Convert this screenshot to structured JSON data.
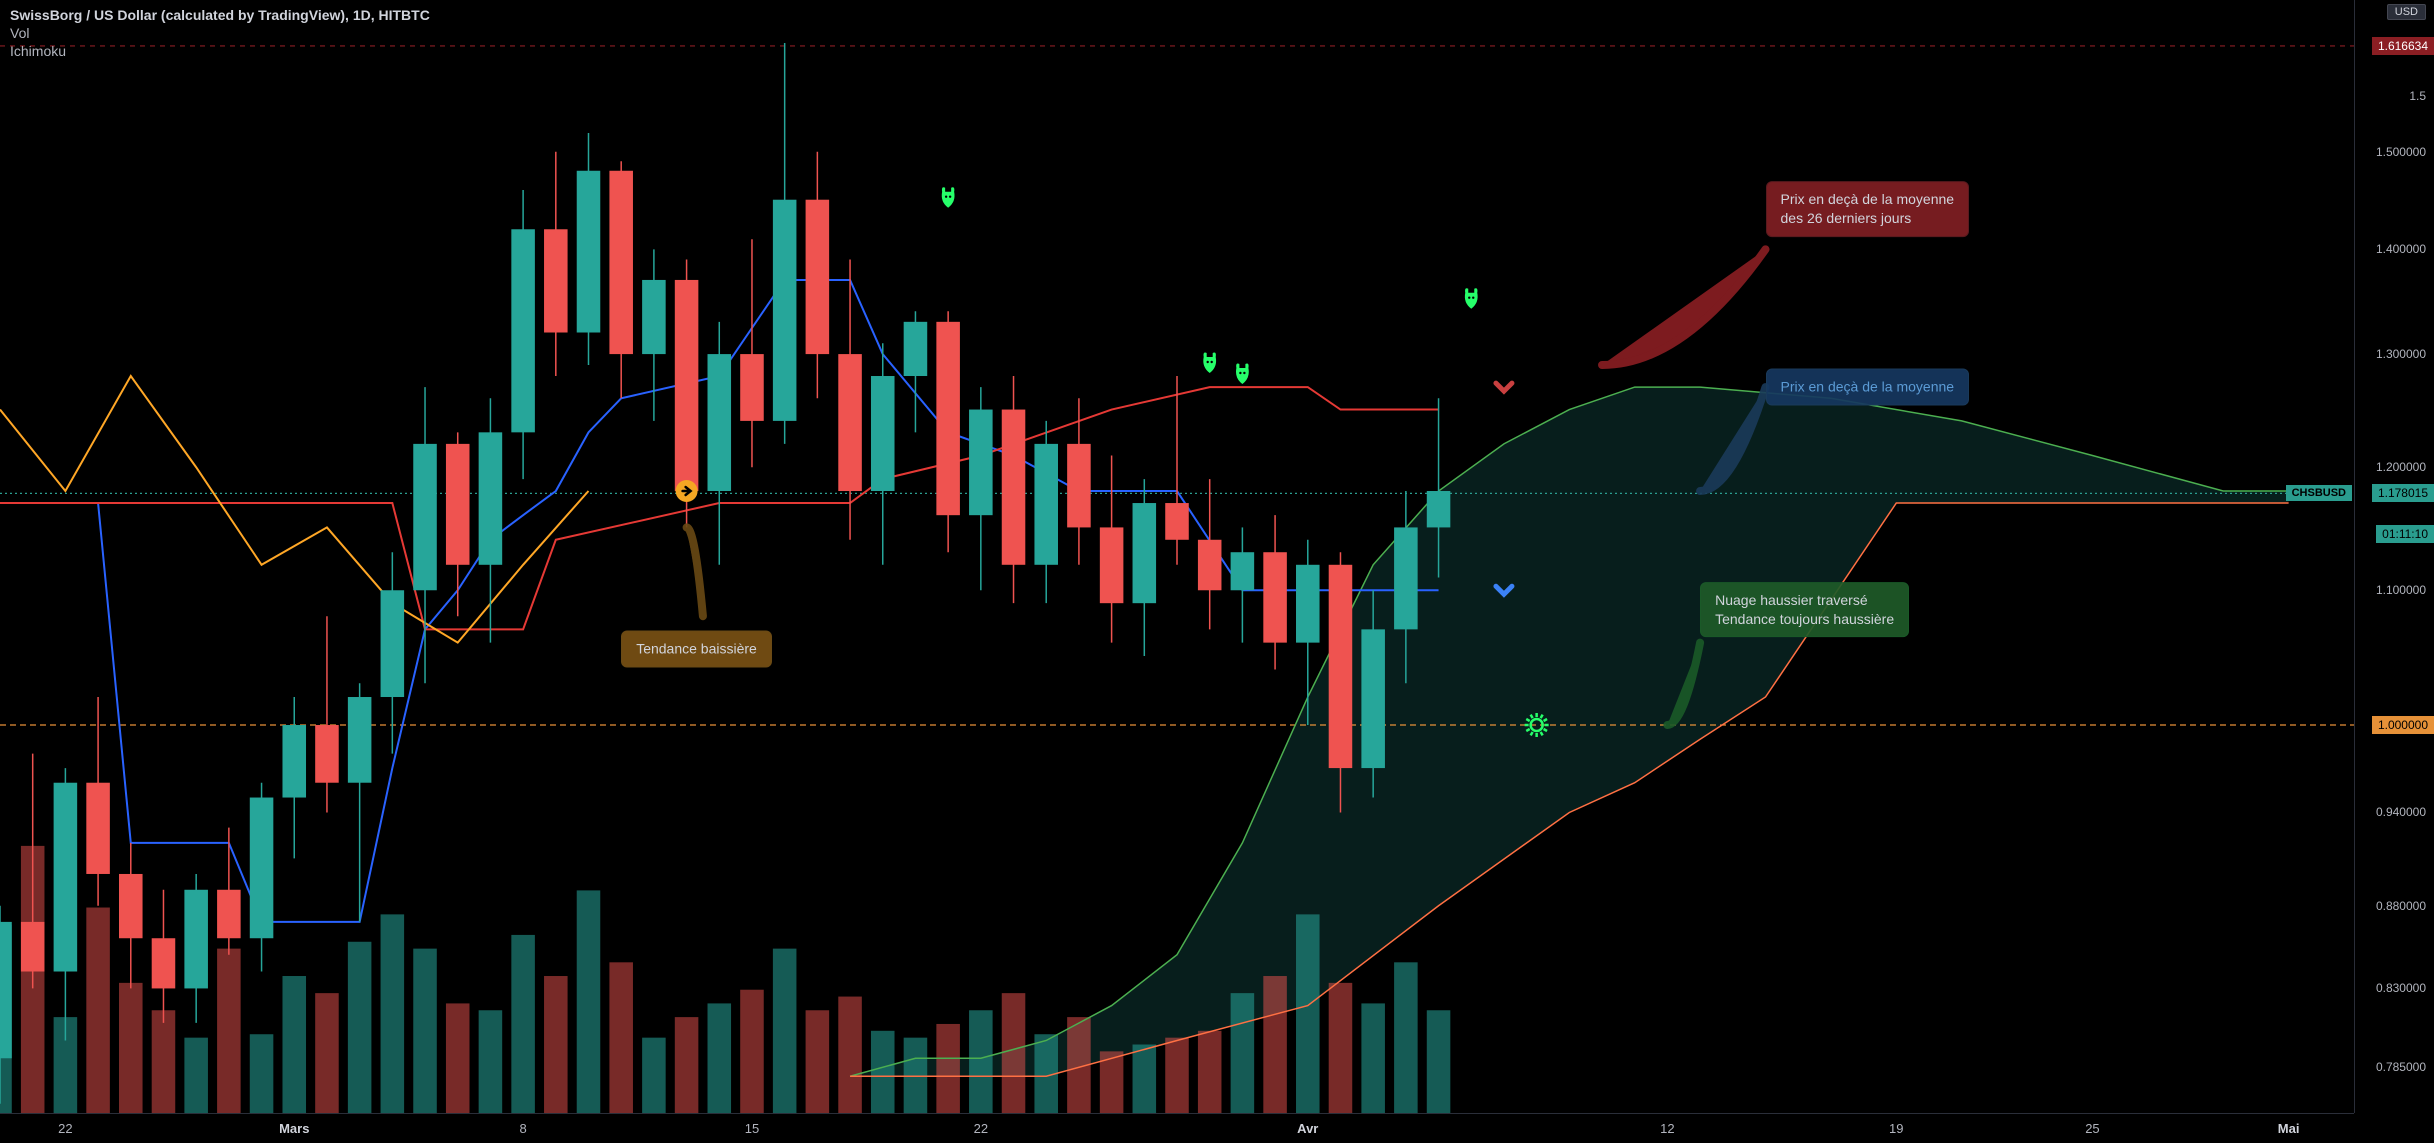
{
  "header": {
    "title": "SwissBorg / US Dollar (calculated by TradingView), 1D, HITBTC",
    "vol": "Vol",
    "ichimoku": "Ichimoku"
  },
  "currency_badge": "USD",
  "symbol_badge": "CHSBUSD",
  "price_axis": {
    "labels": [
      {
        "v": 1.5,
        "text": "1.500000"
      },
      {
        "v": 1.4,
        "text": "1.400000"
      },
      {
        "v": 1.3,
        "text": "1.300000"
      },
      {
        "v": 1.2,
        "text": "1.200000"
      },
      {
        "v": 1.1,
        "text": "1.100000"
      },
      {
        "v": 0.94,
        "text": "0.940000"
      },
      {
        "v": 0.88,
        "text": "0.880000"
      },
      {
        "v": 0.83,
        "text": "0.830000"
      },
      {
        "v": 0.785,
        "text": "0.785000"
      }
    ],
    "badges": [
      {
        "v": 1.616634,
        "text": "1.616634",
        "bg": "#8B1E23",
        "fg": "#ffffff"
      },
      {
        "v": 1.178015,
        "text": "1.178015",
        "bg": "#2a9d8f",
        "fg": "#000000"
      },
      {
        "v": 1.145,
        "text": "01:11:10",
        "bg": "#2a9d8f",
        "fg": "#000000"
      },
      {
        "v": 1.0,
        "text": "1.000000",
        "bg": "#e69138",
        "fg": "#000000"
      }
    ],
    "cutoff_top": {
      "v": 1.56,
      "text": "1.5"
    }
  },
  "hlines": [
    {
      "v": 1.616634,
      "color": "#8B1E23",
      "dash": "5,5"
    },
    {
      "v": 1.178015,
      "color": "#2a9d8f",
      "dash": "2,3"
    },
    {
      "v": 1.0,
      "color": "#e69138",
      "dash": "6,4"
    }
  ],
  "time_axis": {
    "labels": [
      {
        "i": 2,
        "text": "22",
        "bold": false
      },
      {
        "i": 9,
        "text": "Mars",
        "bold": true
      },
      {
        "i": 16,
        "text": "8",
        "bold": false
      },
      {
        "i": 23,
        "text": "15",
        "bold": false
      },
      {
        "i": 30,
        "text": "22",
        "bold": false
      },
      {
        "i": 40,
        "text": "Avr",
        "bold": true
      },
      {
        "i": 51,
        "text": "12",
        "bold": false
      },
      {
        "i": 58,
        "text": "19",
        "bold": false
      },
      {
        "i": 64,
        "text": "25",
        "bold": false
      },
      {
        "i": 70,
        "text": "Mai",
        "bold": true
      }
    ]
  },
  "scale": {
    "y_min": 0.76,
    "y_max": 1.67,
    "x_min": 0,
    "x_max": 72,
    "candle_w": 0.72
  },
  "colors": {
    "bg": "#000000",
    "up": "#26a69a",
    "down": "#ef5350",
    "cloud_bull": "rgba(38,166,154,0.18)",
    "cloud_bear": "rgba(239,83,80,0.15)",
    "tenkan": "#2962ff",
    "kijun": "#e53935",
    "senkouA": "#4caf50",
    "senkouB": "#ff7043",
    "chikou": "#ffa726",
    "vol_up": "rgba(38,166,154,0.55)",
    "vol_down": "rgba(239,83,80,0.5)"
  },
  "candles": [
    {
      "i": 0,
      "o": 0.79,
      "h": 0.88,
      "l": 0.765,
      "c": 0.87,
      "up": true,
      "v": 0.55
    },
    {
      "i": 1,
      "o": 0.87,
      "h": 0.98,
      "l": 0.83,
      "c": 0.84,
      "up": false,
      "v": 0.78
    },
    {
      "i": 2,
      "o": 0.84,
      "h": 0.97,
      "l": 0.8,
      "c": 0.96,
      "up": true,
      "v": 0.28
    },
    {
      "i": 3,
      "o": 0.96,
      "h": 1.02,
      "l": 0.88,
      "c": 0.9,
      "up": false,
      "v": 0.6
    },
    {
      "i": 4,
      "o": 0.9,
      "h": 0.92,
      "l": 0.83,
      "c": 0.86,
      "up": false,
      "v": 0.38
    },
    {
      "i": 5,
      "o": 0.86,
      "h": 0.89,
      "l": 0.81,
      "c": 0.83,
      "up": false,
      "v": 0.3
    },
    {
      "i": 6,
      "o": 0.83,
      "h": 0.9,
      "l": 0.81,
      "c": 0.89,
      "up": true,
      "v": 0.22
    },
    {
      "i": 7,
      "o": 0.89,
      "h": 0.93,
      "l": 0.85,
      "c": 0.86,
      "up": false,
      "v": 0.48
    },
    {
      "i": 8,
      "o": 0.86,
      "h": 0.96,
      "l": 0.84,
      "c": 0.95,
      "up": true,
      "v": 0.23
    },
    {
      "i": 9,
      "o": 0.95,
      "h": 1.02,
      "l": 0.91,
      "c": 1.0,
      "up": true,
      "v": 0.4
    },
    {
      "i": 10,
      "o": 1.0,
      "h": 1.08,
      "l": 0.94,
      "c": 0.96,
      "up": false,
      "v": 0.35
    },
    {
      "i": 11,
      "o": 0.96,
      "h": 1.03,
      "l": 0.87,
      "c": 1.02,
      "up": true,
      "v": 0.5
    },
    {
      "i": 12,
      "o": 1.02,
      "h": 1.13,
      "l": 0.98,
      "c": 1.1,
      "up": true,
      "v": 0.58
    },
    {
      "i": 13,
      "o": 1.1,
      "h": 1.27,
      "l": 1.03,
      "c": 1.22,
      "up": true,
      "v": 0.48
    },
    {
      "i": 14,
      "o": 1.22,
      "h": 1.23,
      "l": 1.08,
      "c": 1.12,
      "up": false,
      "v": 0.32
    },
    {
      "i": 15,
      "o": 1.12,
      "h": 1.26,
      "l": 1.06,
      "c": 1.23,
      "up": true,
      "v": 0.3
    },
    {
      "i": 16,
      "o": 1.23,
      "h": 1.46,
      "l": 1.19,
      "c": 1.42,
      "up": true,
      "v": 0.52
    },
    {
      "i": 17,
      "o": 1.42,
      "h": 1.5,
      "l": 1.28,
      "c": 1.32,
      "up": false,
      "v": 0.4
    },
    {
      "i": 18,
      "o": 1.32,
      "h": 1.52,
      "l": 1.29,
      "c": 1.48,
      "up": true,
      "v": 0.65
    },
    {
      "i": 19,
      "o": 1.48,
      "h": 1.49,
      "l": 1.26,
      "c": 1.3,
      "up": false,
      "v": 0.44
    },
    {
      "i": 20,
      "o": 1.3,
      "h": 1.4,
      "l": 1.24,
      "c": 1.37,
      "up": true,
      "v": 0.22
    },
    {
      "i": 21,
      "o": 1.37,
      "h": 1.39,
      "l": 1.15,
      "c": 1.18,
      "up": false,
      "v": 0.28
    },
    {
      "i": 22,
      "o": 1.18,
      "h": 1.33,
      "l": 1.12,
      "c": 1.3,
      "up": true,
      "v": 0.32
    },
    {
      "i": 23,
      "o": 1.3,
      "h": 1.41,
      "l": 1.2,
      "c": 1.24,
      "up": false,
      "v": 0.36
    },
    {
      "i": 24,
      "o": 1.24,
      "h": 1.62,
      "l": 1.22,
      "c": 1.45,
      "up": true,
      "v": 0.48
    },
    {
      "i": 25,
      "o": 1.45,
      "h": 1.5,
      "l": 1.26,
      "c": 1.3,
      "up": false,
      "v": 0.3
    },
    {
      "i": 26,
      "o": 1.3,
      "h": 1.39,
      "l": 1.14,
      "c": 1.18,
      "up": false,
      "v": 0.34
    },
    {
      "i": 27,
      "o": 1.18,
      "h": 1.31,
      "l": 1.12,
      "c": 1.28,
      "up": true,
      "v": 0.24
    },
    {
      "i": 28,
      "o": 1.28,
      "h": 1.34,
      "l": 1.23,
      "c": 1.33,
      "up": true,
      "v": 0.22
    },
    {
      "i": 29,
      "o": 1.33,
      "h": 1.34,
      "l": 1.13,
      "c": 1.16,
      "up": false,
      "v": 0.26
    },
    {
      "i": 30,
      "o": 1.16,
      "h": 1.27,
      "l": 1.1,
      "c": 1.25,
      "up": true,
      "v": 0.3
    },
    {
      "i": 31,
      "o": 1.25,
      "h": 1.28,
      "l": 1.09,
      "c": 1.12,
      "up": false,
      "v": 0.35
    },
    {
      "i": 32,
      "o": 1.12,
      "h": 1.24,
      "l": 1.09,
      "c": 1.22,
      "up": true,
      "v": 0.23
    },
    {
      "i": 33,
      "o": 1.22,
      "h": 1.26,
      "l": 1.12,
      "c": 1.15,
      "up": false,
      "v": 0.28
    },
    {
      "i": 34,
      "o": 1.15,
      "h": 1.21,
      "l": 1.06,
      "c": 1.09,
      "up": false,
      "v": 0.18
    },
    {
      "i": 35,
      "o": 1.09,
      "h": 1.19,
      "l": 1.05,
      "c": 1.17,
      "up": true,
      "v": 0.2
    },
    {
      "i": 36,
      "o": 1.17,
      "h": 1.28,
      "l": 1.12,
      "c": 1.14,
      "up": false,
      "v": 0.22
    },
    {
      "i": 37,
      "o": 1.14,
      "h": 1.19,
      "l": 1.07,
      "c": 1.1,
      "up": false,
      "v": 0.24
    },
    {
      "i": 38,
      "o": 1.1,
      "h": 1.15,
      "l": 1.06,
      "c": 1.13,
      "up": true,
      "v": 0.35
    },
    {
      "i": 39,
      "o": 1.13,
      "h": 1.16,
      "l": 1.04,
      "c": 1.06,
      "up": false,
      "v": 0.4
    },
    {
      "i": 40,
      "o": 1.06,
      "h": 1.14,
      "l": 1.0,
      "c": 1.12,
      "up": true,
      "v": 0.58
    },
    {
      "i": 41,
      "o": 1.12,
      "h": 1.13,
      "l": 0.94,
      "c": 0.97,
      "up": false,
      "v": 0.38
    },
    {
      "i": 42,
      "o": 0.97,
      "h": 1.1,
      "l": 0.95,
      "c": 1.07,
      "up": true,
      "v": 0.32
    },
    {
      "i": 43,
      "o": 1.07,
      "h": 1.18,
      "l": 1.03,
      "c": 1.15,
      "up": true,
      "v": 0.44
    },
    {
      "i": 44,
      "o": 1.15,
      "h": 1.26,
      "l": 1.11,
      "c": 1.18,
      "up": true,
      "v": 0.3
    }
  ],
  "ichimoku": {
    "tenkan": [
      {
        "i": 0,
        "v": 1.17
      },
      {
        "i": 3,
        "v": 1.17
      },
      {
        "i": 4,
        "v": 0.92
      },
      {
        "i": 7,
        "v": 0.92
      },
      {
        "i": 8,
        "v": 0.87
      },
      {
        "i": 11,
        "v": 0.87
      },
      {
        "i": 12,
        "v": 0.97
      },
      {
        "i": 13,
        "v": 1.07
      },
      {
        "i": 14,
        "v": 1.1
      },
      {
        "i": 15,
        "v": 1.14
      },
      {
        "i": 16,
        "v": 1.16
      },
      {
        "i": 17,
        "v": 1.18
      },
      {
        "i": 18,
        "v": 1.23
      },
      {
        "i": 19,
        "v": 1.26
      },
      {
        "i": 22,
        "v": 1.28
      },
      {
        "i": 24,
        "v": 1.37
      },
      {
        "i": 26,
        "v": 1.37
      },
      {
        "i": 27,
        "v": 1.3
      },
      {
        "i": 29,
        "v": 1.23
      },
      {
        "i": 31,
        "v": 1.21
      },
      {
        "i": 33,
        "v": 1.18
      },
      {
        "i": 36,
        "v": 1.18
      },
      {
        "i": 38,
        "v": 1.1
      },
      {
        "i": 42,
        "v": 1.1
      },
      {
        "i": 44,
        "v": 1.1
      }
    ],
    "kijun": [
      {
        "i": 0,
        "v": 1.17
      },
      {
        "i": 12,
        "v": 1.17
      },
      {
        "i": 13,
        "v": 1.07
      },
      {
        "i": 16,
        "v": 1.07
      },
      {
        "i": 17,
        "v": 1.14
      },
      {
        "i": 22,
        "v": 1.17
      },
      {
        "i": 26,
        "v": 1.17
      },
      {
        "i": 27,
        "v": 1.19
      },
      {
        "i": 30,
        "v": 1.21
      },
      {
        "i": 34,
        "v": 1.25
      },
      {
        "i": 37,
        "v": 1.27
      },
      {
        "i": 40,
        "v": 1.27
      },
      {
        "i": 41,
        "v": 1.25
      },
      {
        "i": 44,
        "v": 1.25
      }
    ],
    "chikou": [
      {
        "i": 0,
        "v": 1.25
      },
      {
        "i": 2,
        "v": 1.18
      },
      {
        "i": 4,
        "v": 1.28
      },
      {
        "i": 6,
        "v": 1.2
      },
      {
        "i": 8,
        "v": 1.12
      },
      {
        "i": 10,
        "v": 1.15
      },
      {
        "i": 12,
        "v": 1.09
      },
      {
        "i": 14,
        "v": 1.06
      },
      {
        "i": 16,
        "v": 1.12
      },
      {
        "i": 18,
        "v": 1.18
      }
    ],
    "senkouA": [
      {
        "i": 26,
        "v": 0.78
      },
      {
        "i": 28,
        "v": 0.79
      },
      {
        "i": 30,
        "v": 0.79
      },
      {
        "i": 32,
        "v": 0.8
      },
      {
        "i": 34,
        "v": 0.82
      },
      {
        "i": 36,
        "v": 0.85
      },
      {
        "i": 38,
        "v": 0.92
      },
      {
        "i": 40,
        "v": 1.02
      },
      {
        "i": 42,
        "v": 1.12
      },
      {
        "i": 44,
        "v": 1.18
      },
      {
        "i": 46,
        "v": 1.22
      },
      {
        "i": 48,
        "v": 1.25
      },
      {
        "i": 50,
        "v": 1.27
      },
      {
        "i": 52,
        "v": 1.27
      },
      {
        "i": 56,
        "v": 1.26
      },
      {
        "i": 60,
        "v": 1.24
      },
      {
        "i": 64,
        "v": 1.21
      },
      {
        "i": 68,
        "v": 1.18
      },
      {
        "i": 70,
        "v": 1.18
      }
    ],
    "senkouB": [
      {
        "i": 26,
        "v": 0.78
      },
      {
        "i": 30,
        "v": 0.78
      },
      {
        "i": 32,
        "v": 0.78
      },
      {
        "i": 36,
        "v": 0.8
      },
      {
        "i": 40,
        "v": 0.82
      },
      {
        "i": 44,
        "v": 0.88
      },
      {
        "i": 48,
        "v": 0.94
      },
      {
        "i": 50,
        "v": 0.96
      },
      {
        "i": 52,
        "v": 0.99
      },
      {
        "i": 54,
        "v": 1.02
      },
      {
        "i": 58,
        "v": 1.17
      },
      {
        "i": 62,
        "v": 1.17
      },
      {
        "i": 70,
        "v": 1.17
      }
    ]
  },
  "markers": [
    {
      "type": "bear",
      "i": 29,
      "v": 1.45,
      "color": "#26ff6a"
    },
    {
      "type": "bear",
      "i": 37,
      "v": 1.29,
      "color": "#26ff6a"
    },
    {
      "type": "bear",
      "i": 38,
      "v": 1.28,
      "color": "#26ff6a"
    },
    {
      "type": "bear",
      "i": 45,
      "v": 1.35,
      "color": "#26ff6a"
    },
    {
      "type": "arrow-right",
      "i": 21,
      "v": 1.18,
      "color": "#f5a623"
    },
    {
      "type": "chev-down",
      "i": 46,
      "v": 1.27,
      "color": "#c94040"
    },
    {
      "type": "chev-down",
      "i": 46,
      "v": 1.1,
      "color": "#3b82f6"
    },
    {
      "type": "sun",
      "i": 47,
      "v": 1.0,
      "color": "#26ff6a"
    }
  ],
  "annotations": [
    {
      "cls": "red",
      "i": 54,
      "v": 1.44,
      "text": "Prix en deçà de la moyenne\ndes 26 derniers jours"
    },
    {
      "cls": "blue",
      "i": 54,
      "v": 1.27,
      "text": "Prix en deçà de la moyenne"
    },
    {
      "cls": "green",
      "i": 52,
      "v": 1.085,
      "text": "Nuage haussier traversé\nTendance toujours haussière"
    },
    {
      "cls": "orange",
      "i": 19,
      "v": 1.055,
      "text": "Tendance baissière"
    }
  ]
}
